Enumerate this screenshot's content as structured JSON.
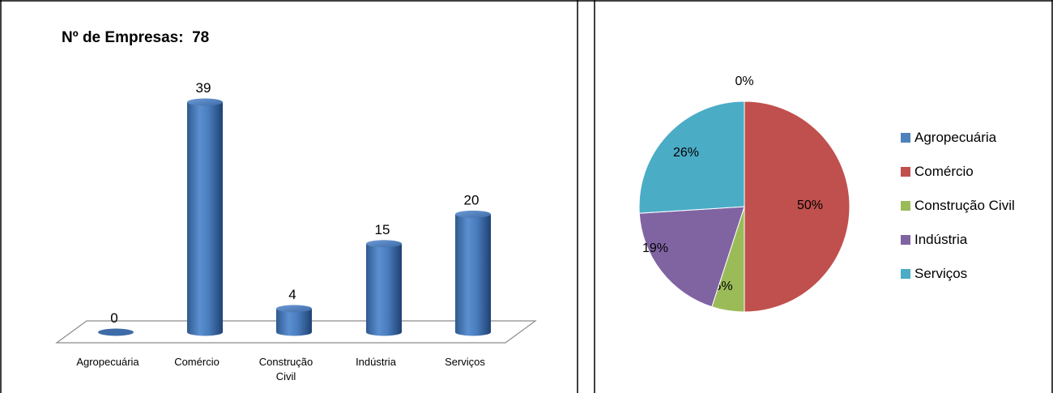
{
  "bar_panel": {
    "title": "Nº de Empresas:  78"
  },
  "chart_data": [
    {
      "type": "bar",
      "title": "Nº de Empresas:  78",
      "categories": [
        "Agropecuária",
        "Comércio",
        "Construção Civil",
        "Indústria",
        "Serviços"
      ],
      "category_lines": [
        [
          "Agropecuária"
        ],
        [
          "Comércio"
        ],
        [
          "Construção",
          "Civil"
        ],
        [
          "Indústria"
        ],
        [
          "Serviços"
        ]
      ],
      "values": [
        0,
        39,
        4,
        15,
        20
      ],
      "data_labels": [
        "0",
        "39",
        "4",
        "15",
        "20"
      ],
      "ylim": [
        0,
        40
      ],
      "grid": false,
      "legend": "none",
      "style": "3d-cylinder",
      "color": "#4F81BD"
    },
    {
      "type": "pie",
      "categories": [
        "Agropecuária",
        "Comércio",
        "Construção Civil",
        "Indústria",
        "Serviços"
      ],
      "values": [
        0,
        50,
        5,
        19,
        26
      ],
      "data_labels": [
        "0%",
        "50%",
        "5%",
        "19%",
        "26%"
      ],
      "colors": [
        "#4F81BD",
        "#C0504D",
        "#9BBB59",
        "#8064A2",
        "#4BACC6"
      ],
      "legend": "right"
    }
  ]
}
